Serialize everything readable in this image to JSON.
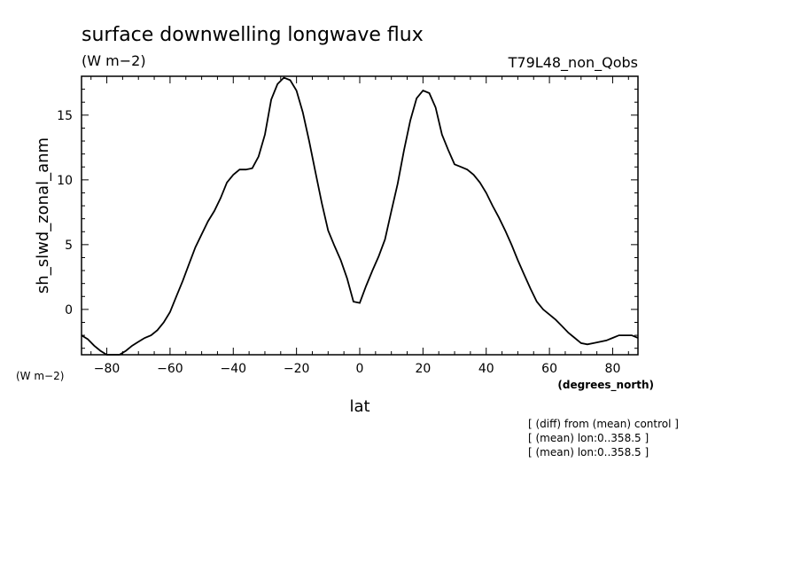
{
  "chart_data": {
    "type": "line",
    "title": "surface downwelling longwave flux",
    "subtitle": "(W m−2)",
    "run_label": "T79L48_non_Qobs",
    "xlabel": "lat",
    "xunits": "(degrees_north)",
    "ylabel": "sh_slwd_zonal_anm",
    "yunits": "(W m−2)",
    "xlim": [
      -88,
      88
    ],
    "ylim": [
      -3.5,
      18
    ],
    "xticks": [
      -80,
      -60,
      -40,
      -20,
      0,
      20,
      40,
      60,
      80
    ],
    "yticks": [
      0,
      5,
      10,
      15
    ],
    "grid": false,
    "notes": [
      "[ (diff) from (mean) control ]",
      "[ (mean) lon:0..358.5 ]",
      "[ (mean) lon:0..358.5 ]"
    ],
    "series": [
      {
        "x": [
          -88,
          -86,
          -84,
          -82,
          -80,
          -78,
          -76,
          -74,
          -72,
          -70,
          -68,
          -66,
          -64,
          -62,
          -60,
          -58,
          -56,
          -54,
          -52,
          -50,
          -48,
          -46,
          -44,
          -42,
          -40,
          -38,
          -36,
          -34,
          -32,
          -30,
          -28,
          -26,
          -24,
          -22,
          -20,
          -18,
          -16,
          -14,
          -12,
          -10,
          -8,
          -6,
          -4,
          -2,
          0,
          2,
          4,
          6,
          8,
          10,
          12,
          14,
          16,
          18,
          20,
          22,
          24,
          26,
          28,
          30,
          32,
          34,
          36,
          38,
          40,
          42,
          44,
          46,
          48,
          50,
          52,
          54,
          56,
          58,
          60,
          62,
          64,
          66,
          68,
          70,
          72,
          74,
          76,
          78,
          80,
          82,
          84,
          86,
          88
        ],
        "y": [
          -2.0,
          -2.3,
          -2.8,
          -3.2,
          -3.5,
          -3.6,
          -3.5,
          -3.2,
          -2.8,
          -2.5,
          -2.2,
          -2.0,
          -1.6,
          -1.0,
          -0.2,
          1.0,
          2.2,
          3.5,
          4.8,
          5.8,
          6.8,
          7.6,
          8.6,
          9.8,
          10.4,
          10.8,
          10.8,
          10.9,
          11.8,
          13.5,
          16.2,
          17.4,
          17.9,
          17.7,
          16.9,
          15.2,
          13.0,
          10.6,
          8.2,
          6.1,
          4.9,
          3.8,
          2.4,
          0.6,
          0.5,
          1.8,
          3.0,
          4.1,
          5.4,
          7.6,
          9.7,
          12.3,
          14.6,
          16.3,
          16.9,
          16.7,
          15.6,
          13.5,
          12.3,
          11.2,
          11.0,
          10.8,
          10.4,
          9.8,
          9.0,
          8.0,
          7.1,
          6.1,
          5.0,
          3.8,
          2.7,
          1.6,
          0.6,
          0.0,
          -0.4,
          -0.8,
          -1.3,
          -1.8,
          -2.2,
          -2.6,
          -2.7,
          -2.6,
          -2.5,
          -2.4,
          -2.2,
          -2.0,
          -2.0,
          -2.0,
          -2.2
        ]
      }
    ]
  }
}
